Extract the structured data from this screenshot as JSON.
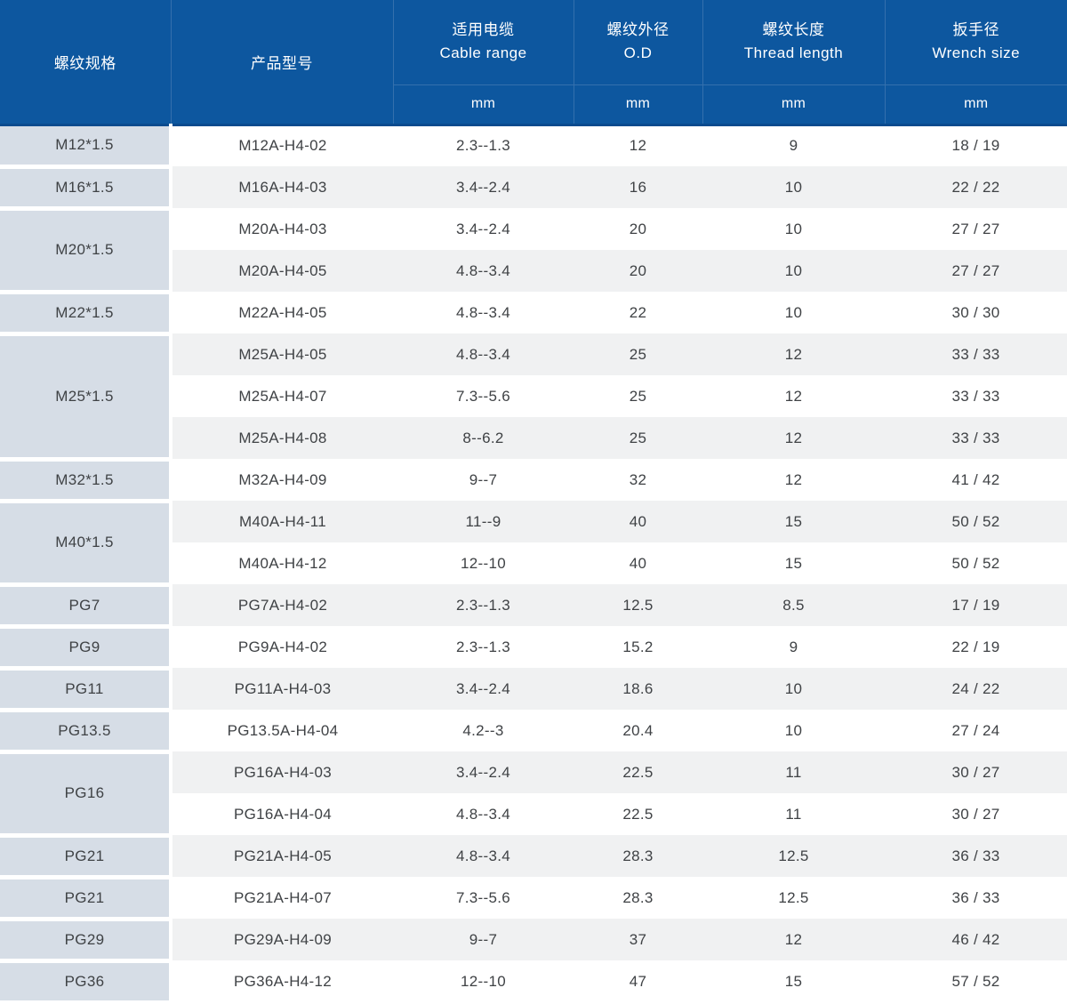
{
  "colors": {
    "header_bg": "#0d579f",
    "header_divider": "#3470ad",
    "header_bottom_edge": "#0b4b8e",
    "spec_cell_bg": "#d6dde6",
    "row_bg": "#ffffff",
    "row_alt_bg": "#f0f1f2",
    "body_text": "#3f4245",
    "header_text": "#ffffff"
  },
  "header": {
    "spec_label": "螺纹规格",
    "model_label": "产品型号",
    "cable_zh": "适用电缆",
    "cable_en": "Cable range",
    "od_zh": "螺纹外径",
    "od_en": "O.D",
    "thread_zh": "螺纹长度",
    "thread_en": "Thread length",
    "wrench_zh": "扳手径",
    "wrench_en": "Wrench size",
    "unit_mm": "mm"
  },
  "groups": [
    {
      "spec": "M12*1.5",
      "rows": [
        {
          "model": "M12A-H4-02",
          "cable": "2.3--1.3",
          "od": "12",
          "thread": "9",
          "wrench": "18 / 19"
        }
      ]
    },
    {
      "spec": "M16*1.5",
      "rows": [
        {
          "model": "M16A-H4-03",
          "cable": "3.4--2.4",
          "od": "16",
          "thread": "10",
          "wrench": "22 / 22"
        }
      ]
    },
    {
      "spec": "M20*1.5",
      "rows": [
        {
          "model": "M20A-H4-03",
          "cable": "3.4--2.4",
          "od": "20",
          "thread": "10",
          "wrench": "27 / 27"
        },
        {
          "model": "M20A-H4-05",
          "cable": "4.8--3.4",
          "od": "20",
          "thread": "10",
          "wrench": "27 / 27"
        }
      ]
    },
    {
      "spec": "M22*1.5",
      "rows": [
        {
          "model": "M22A-H4-05",
          "cable": "4.8--3.4",
          "od": "22",
          "thread": "10",
          "wrench": "30 / 30"
        }
      ]
    },
    {
      "spec": "M25*1.5",
      "rows": [
        {
          "model": "M25A-H4-05",
          "cable": "4.8--3.4",
          "od": "25",
          "thread": "12",
          "wrench": "33 / 33"
        },
        {
          "model": "M25A-H4-07",
          "cable": "7.3--5.6",
          "od": "25",
          "thread": "12",
          "wrench": "33 / 33"
        },
        {
          "model": "M25A-H4-08",
          "cable": "8--6.2",
          "od": "25",
          "thread": "12",
          "wrench": "33 / 33"
        }
      ]
    },
    {
      "spec": "M32*1.5",
      "rows": [
        {
          "model": "M32A-H4-09",
          "cable": "9--7",
          "od": "32",
          "thread": "12",
          "wrench": "41 / 42"
        }
      ]
    },
    {
      "spec": "M40*1.5",
      "rows": [
        {
          "model": "M40A-H4-11",
          "cable": "11--9",
          "od": "40",
          "thread": "15",
          "wrench": "50 / 52"
        },
        {
          "model": "M40A-H4-12",
          "cable": "12--10",
          "od": "40",
          "thread": "15",
          "wrench": "50 / 52"
        }
      ]
    },
    {
      "spec": "PG7",
      "rows": [
        {
          "model": "PG7A-H4-02",
          "cable": "2.3--1.3",
          "od": "12.5",
          "thread": "8.5",
          "wrench": "17 / 19"
        }
      ]
    },
    {
      "spec": "PG9",
      "rows": [
        {
          "model": "PG9A-H4-02",
          "cable": "2.3--1.3",
          "od": "15.2",
          "thread": "9",
          "wrench": "22 / 19"
        }
      ]
    },
    {
      "spec": "PG11",
      "rows": [
        {
          "model": "PG11A-H4-03",
          "cable": "3.4--2.4",
          "od": "18.6",
          "thread": "10",
          "wrench": "24 / 22"
        }
      ]
    },
    {
      "spec": "PG13.5",
      "rows": [
        {
          "model": "PG13.5A-H4-04",
          "cable": "4.2--3",
          "od": "20.4",
          "thread": "10",
          "wrench": "27 / 24"
        }
      ]
    },
    {
      "spec": "PG16",
      "rows": [
        {
          "model": "PG16A-H4-03",
          "cable": "3.4--2.4",
          "od": "22.5",
          "thread": "11",
          "wrench": "30 / 27"
        },
        {
          "model": "PG16A-H4-04",
          "cable": "4.8--3.4",
          "od": "22.5",
          "thread": "11",
          "wrench": "30 / 27"
        }
      ]
    },
    {
      "spec": "PG21",
      "rows": [
        {
          "model": "PG21A-H4-05",
          "cable": "4.8--3.4",
          "od": "28.3",
          "thread": "12.5",
          "wrench": "36 / 33"
        }
      ]
    },
    {
      "spec": "PG21",
      "rows": [
        {
          "model": "PG21A-H4-07",
          "cable": "7.3--5.6",
          "od": "28.3",
          "thread": "12.5",
          "wrench": "36 / 33"
        }
      ]
    },
    {
      "spec": "PG29",
      "rows": [
        {
          "model": "PG29A-H4-09",
          "cable": "9--7",
          "od": "37",
          "thread": "12",
          "wrench": "46 / 42"
        }
      ]
    },
    {
      "spec": "PG36",
      "rows": [
        {
          "model": "PG36A-H4-12",
          "cable": "12--10",
          "od": "47",
          "thread": "15",
          "wrench": "57 / 52"
        }
      ]
    }
  ]
}
